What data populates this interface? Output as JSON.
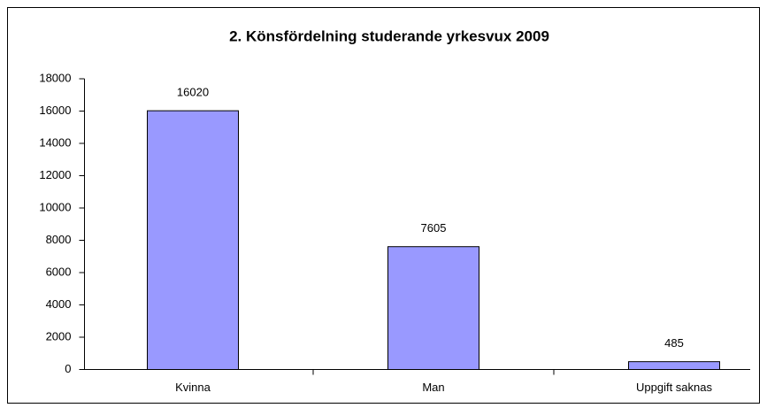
{
  "chart_data": {
    "type": "bar",
    "title": "2. Könsfördelning studerande yrkesvux 2009",
    "categories": [
      "Kvinna",
      "Man",
      "Uppgift saknas"
    ],
    "values": [
      16020,
      7605,
      485
    ],
    "color": "#9999ff",
    "ylim": [
      0,
      18000
    ],
    "yticks": [
      0,
      2000,
      4000,
      6000,
      8000,
      10000,
      12000,
      14000,
      16000,
      18000
    ],
    "grid": false
  }
}
